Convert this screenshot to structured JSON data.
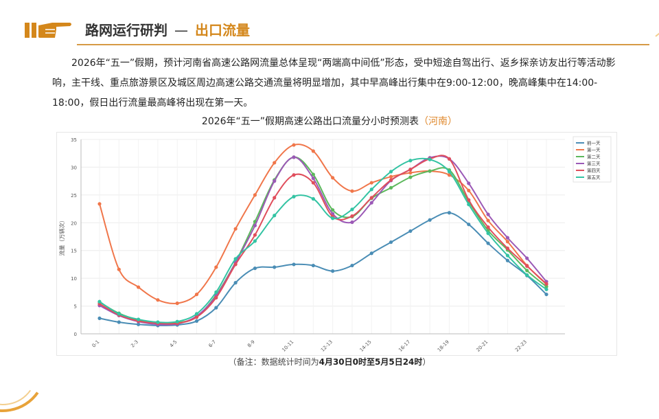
{
  "header": {
    "title": "路网运行研判",
    "dash": "—",
    "subtitle": "出口流量",
    "icon": "pointing-hand-icon"
  },
  "paragraph": "2026年“五一”假期，预计河南省高速公路网流量总体呈现“两端高中间低”形态，受中短途自驾出行、返乡探亲访友出行等活动影响，主干线、重点旅游景区及城区周边高速公路交通流量将明显增加，其中早高峰出行集中在9:00-12:00，晚高峰集中在14:00-18:00，假日出行流量最高峰将出现在第一天。",
  "chart_title": {
    "main": "2026年“五一”假期高速公路出口流量分小时预测表",
    "region": "（河南）"
  },
  "note": {
    "prefix": "（备注：数据统计时间为",
    "range": "4月30日0时至5月5日24时",
    "suffix": "）"
  },
  "colors": {
    "accent": "#d4871b",
    "rule": "#d69a45"
  },
  "chart_data": {
    "type": "line",
    "ylabel": "流量（万辆次）",
    "ylim": [
      0,
      35
    ],
    "yticks": [
      0,
      5,
      10,
      15,
      20,
      25,
      30,
      35
    ],
    "grid": true,
    "legend_position": "top-right",
    "x": [
      "0-1",
      "1-2",
      "2-3",
      "3-4",
      "4-5",
      "5-6",
      "6-7",
      "7-8",
      "8-9",
      "9-10",
      "10-11",
      "11-12",
      "12-13",
      "13-14",
      "14-15",
      "15-16",
      "16-17",
      "17-18",
      "18-19",
      "19-20",
      "20-21",
      "21-22",
      "22-23",
      "23-24"
    ],
    "tick_labels": [
      "0-1",
      "2-3",
      "4-5",
      "6-7",
      "8-9",
      "10-11",
      "12-13",
      "14-15",
      "16-17",
      "18-19",
      "20-21",
      "22-23"
    ],
    "series": [
      {
        "name": "前一天",
        "color": "#4a8db5",
        "values": [
          2.8,
          2.1,
          1.7,
          1.5,
          1.6,
          2.3,
          4.7,
          9.2,
          11.8,
          12.0,
          12.5,
          12.3,
          11.3,
          12.3,
          14.5,
          16.5,
          18.5,
          20.5,
          21.8,
          19.7,
          16.3,
          13.2,
          10.5,
          7.1
        ]
      },
      {
        "name": "第一天",
        "color": "#f0764a",
        "values": [
          23.4,
          11.6,
          8.4,
          6.1,
          5.5,
          7.1,
          12.0,
          18.9,
          25.0,
          30.8,
          34.0,
          32.9,
          28.1,
          25.7,
          27.2,
          28.3,
          29.0,
          29.3,
          28.6,
          25.8,
          20.4,
          16.6,
          12.3,
          8.9
        ]
      },
      {
        "name": "第二天",
        "color": "#5cb85c",
        "values": [
          5.7,
          3.7,
          2.5,
          2.0,
          2.0,
          3.1,
          7.0,
          12.9,
          20.2,
          27.7,
          31.8,
          28.7,
          22.3,
          21.1,
          24.4,
          26.3,
          28.2,
          29.3,
          29.5,
          23.8,
          18.6,
          15.1,
          11.4,
          8.5
        ]
      },
      {
        "name": "第三天",
        "color": "#9b59b6",
        "values": [
          5.1,
          3.3,
          2.2,
          1.7,
          1.8,
          3.2,
          6.8,
          12.8,
          19.5,
          27.5,
          31.8,
          28.0,
          21.6,
          20.1,
          23.6,
          27.6,
          29.6,
          31.7,
          31.5,
          27.1,
          21.5,
          17.3,
          13.6,
          9.4
        ]
      },
      {
        "name": "第四天",
        "color": "#e04e5c",
        "values": [
          5.4,
          3.4,
          2.3,
          1.9,
          1.9,
          3.0,
          6.5,
          12.5,
          17.8,
          24.5,
          28.6,
          27.2,
          21.1,
          21.2,
          24.5,
          27.7,
          29.6,
          31.5,
          31.5,
          24.1,
          19.2,
          15.4,
          12.2,
          9.0
        ]
      },
      {
        "name": "第五天",
        "color": "#33c3a3",
        "values": [
          5.8,
          3.6,
          2.6,
          2.1,
          2.2,
          3.6,
          7.5,
          13.5,
          16.7,
          21.3,
          24.7,
          24.3,
          20.8,
          22.4,
          26.0,
          29.2,
          31.2,
          31.4,
          29.2,
          23.3,
          18.1,
          14.1,
          10.6,
          8.0
        ]
      }
    ]
  }
}
